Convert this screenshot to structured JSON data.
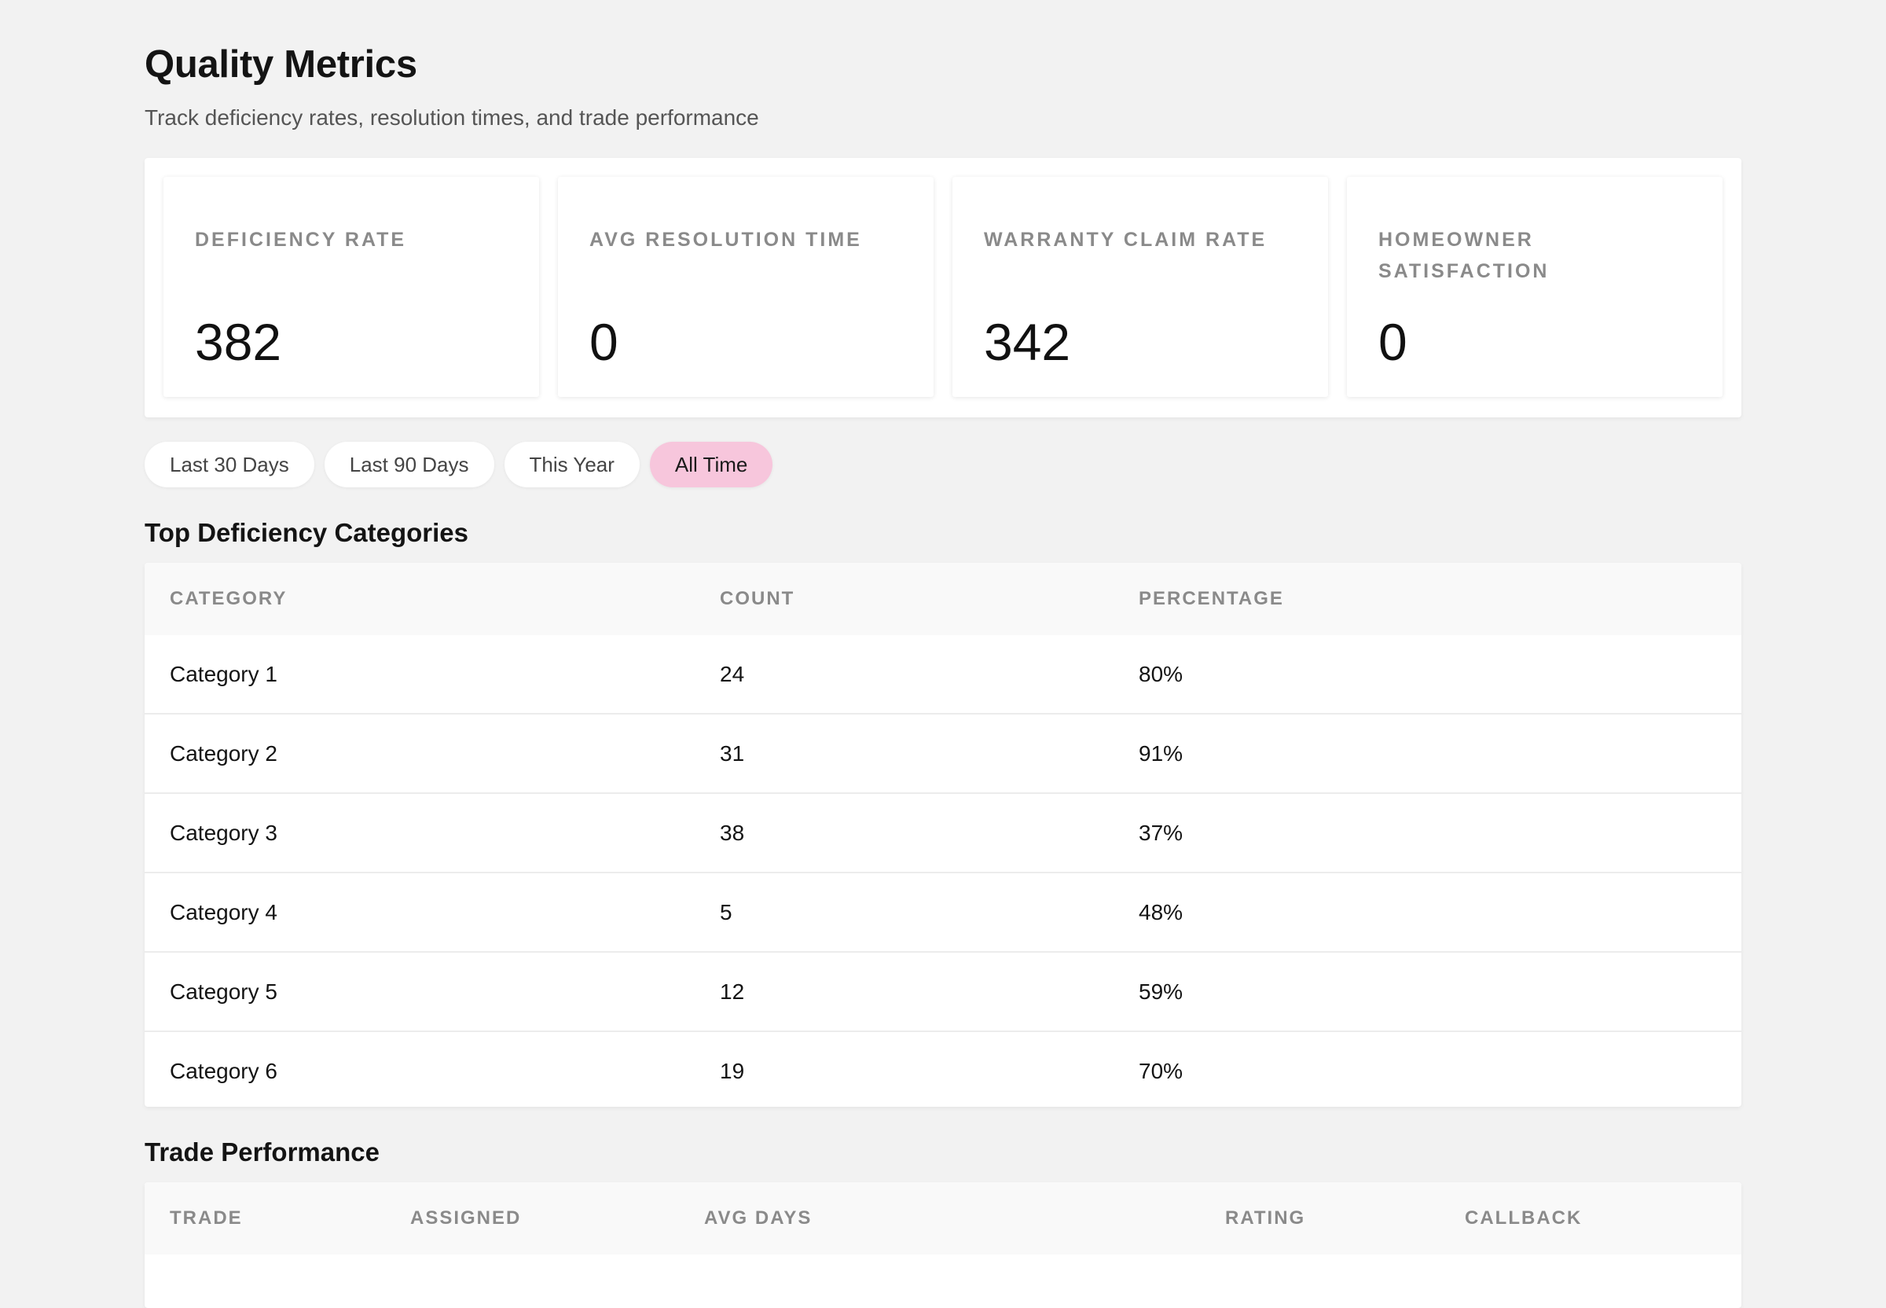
{
  "page": {
    "title": "Quality Metrics",
    "subtitle": "Track deficiency rates, resolution times, and trade performance"
  },
  "metrics": [
    {
      "label": "DEFICIENCY RATE",
      "value": "382"
    },
    {
      "label": "AVG RESOLUTION TIME",
      "value": "0"
    },
    {
      "label": "WARRANTY CLAIM RATE",
      "value": "342"
    },
    {
      "label": "HOMEOWNER SATISFACTION",
      "value": "0"
    }
  ],
  "filters": {
    "options": [
      "Last 30 Days",
      "Last 90 Days",
      "This Year",
      "All Time"
    ],
    "selected": "All Time"
  },
  "categories_section": {
    "title": "Top Deficiency Categories",
    "columns": [
      "CATEGORY",
      "COUNT",
      "PERCENTAGE"
    ],
    "rows": [
      {
        "category": "Category 1",
        "count": "24",
        "percentage": "80%"
      },
      {
        "category": "Category 2",
        "count": "31",
        "percentage": "91%"
      },
      {
        "category": "Category 3",
        "count": "38",
        "percentage": "37%"
      },
      {
        "category": "Category 4",
        "count": "5",
        "percentage": "48%"
      },
      {
        "category": "Category 5",
        "count": "12",
        "percentage": "59%"
      },
      {
        "category": "Category 6",
        "count": "19",
        "percentage": "70%"
      }
    ]
  },
  "trades_section": {
    "title": "Trade Performance",
    "columns": [
      "TRADE",
      "ASSIGNED",
      "AVG DAYS",
      "RATING",
      "CALLBACK"
    ]
  },
  "colors": {
    "background": "#f2f2f2",
    "active_filter": "#f7c6dc",
    "card": "#ffffff"
  }
}
